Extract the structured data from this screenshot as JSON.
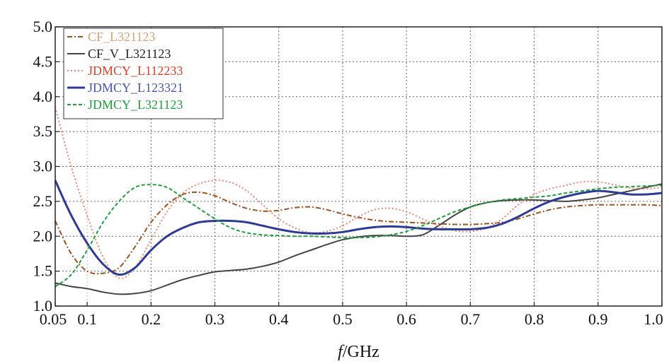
{
  "chart_data": {
    "type": "line",
    "title": "",
    "xlabel_var": "f",
    "xlabel_unit": "/GHz",
    "ylabel": "",
    "xlim": [
      0.05,
      1.0
    ],
    "ylim": [
      1.0,
      5.0
    ],
    "x_ticks": [
      "0.05",
      "0.1",
      "0.2",
      "0.3",
      "0.4",
      "0.5",
      "0.6",
      "0.7",
      "0.8",
      "0.9",
      "1.0"
    ],
    "x_tick_values": [
      0.05,
      0.1,
      0.2,
      0.3,
      0.4,
      0.5,
      0.6,
      0.7,
      0.8,
      0.9,
      1.0
    ],
    "y_ticks": [
      "1.0",
      "1.5",
      "2.0",
      "2.5",
      "3.0",
      "3.5",
      "4.0",
      "4.5",
      "5.0"
    ],
    "y_tick_values": [
      1.0,
      1.5,
      2.0,
      2.5,
      3.0,
      3.5,
      4.0,
      4.5,
      5.0
    ],
    "grid": true,
    "legend_position": "top-left",
    "x": [
      0.05,
      0.075,
      0.1,
      0.125,
      0.15,
      0.175,
      0.2,
      0.225,
      0.25,
      0.275,
      0.3,
      0.325,
      0.35,
      0.375,
      0.4,
      0.425,
      0.45,
      0.475,
      0.5,
      0.525,
      0.55,
      0.575,
      0.6,
      0.625,
      0.65,
      0.675,
      0.7,
      0.725,
      0.75,
      0.775,
      0.8,
      0.825,
      0.85,
      0.875,
      0.9,
      0.925,
      0.95,
      0.975,
      1.0
    ],
    "series": [
      {
        "name": "CF_L321123",
        "color": "#a0521c",
        "label_color": "#d9a273",
        "dash": "dashdot",
        "values": [
          2.22,
          1.75,
          1.5,
          1.47,
          1.55,
          1.85,
          2.2,
          2.45,
          2.6,
          2.63,
          2.58,
          2.48,
          2.4,
          2.36,
          2.37,
          2.41,
          2.42,
          2.38,
          2.32,
          2.27,
          2.23,
          2.21,
          2.2,
          2.19,
          2.18,
          2.17,
          2.17,
          2.18,
          2.2,
          2.25,
          2.32,
          2.38,
          2.42,
          2.44,
          2.45,
          2.45,
          2.45,
          2.45,
          2.44
        ]
      },
      {
        "name": "CF_V_L321123",
        "color": "#444444",
        "label_color": "#222222",
        "dash": "solid",
        "values": [
          1.33,
          1.28,
          1.25,
          1.2,
          1.17,
          1.18,
          1.22,
          1.3,
          1.38,
          1.44,
          1.49,
          1.51,
          1.53,
          1.57,
          1.63,
          1.72,
          1.8,
          1.88,
          1.95,
          1.99,
          2.01,
          2.01,
          2.0,
          2.02,
          2.15,
          2.3,
          2.42,
          2.48,
          2.51,
          2.52,
          2.52,
          2.51,
          2.5,
          2.52,
          2.55,
          2.6,
          2.65,
          2.7,
          2.75
        ]
      },
      {
        "name": "JDMCY_L112233",
        "color": "#f08070",
        "label_color": "#e0402a",
        "dash": "dot",
        "values": [
          3.85,
          3.0,
          2.3,
          1.7,
          1.4,
          1.55,
          1.95,
          2.35,
          2.62,
          2.75,
          2.8,
          2.77,
          2.65,
          2.45,
          2.25,
          2.12,
          2.05,
          2.07,
          2.15,
          2.28,
          2.38,
          2.4,
          2.35,
          2.25,
          2.15,
          2.08,
          2.07,
          2.12,
          2.25,
          2.45,
          2.6,
          2.68,
          2.73,
          2.78,
          2.78,
          2.74,
          2.69,
          2.68,
          2.7
        ]
      },
      {
        "name": "JDMCY_L123321",
        "color": "#2e3a97",
        "label_color": "#4a55b0",
        "dash": "solid",
        "width": 3,
        "values": [
          2.8,
          2.3,
          1.9,
          1.6,
          1.45,
          1.55,
          1.8,
          2.0,
          2.12,
          2.2,
          2.22,
          2.22,
          2.2,
          2.15,
          2.1,
          2.06,
          2.04,
          2.04,
          2.06,
          2.1,
          2.13,
          2.14,
          2.13,
          2.11,
          2.1,
          2.1,
          2.1,
          2.12,
          2.18,
          2.28,
          2.4,
          2.5,
          2.57,
          2.62,
          2.65,
          2.63,
          2.6,
          2.6,
          2.62
        ]
      },
      {
        "name": "JDMCY_L321123",
        "color": "#1ea03c",
        "label_color": "#1ea03c",
        "dash": "dash",
        "values": [
          1.28,
          1.45,
          1.8,
          2.2,
          2.5,
          2.7,
          2.74,
          2.7,
          2.55,
          2.4,
          2.25,
          2.12,
          2.05,
          2.02,
          2.01,
          2.0,
          2.0,
          1.99,
          1.98,
          1.98,
          1.99,
          2.02,
          2.07,
          2.15,
          2.25,
          2.35,
          2.42,
          2.48,
          2.52,
          2.54,
          2.56,
          2.58,
          2.62,
          2.65,
          2.68,
          2.7,
          2.71,
          2.72,
          2.73
        ]
      }
    ]
  }
}
